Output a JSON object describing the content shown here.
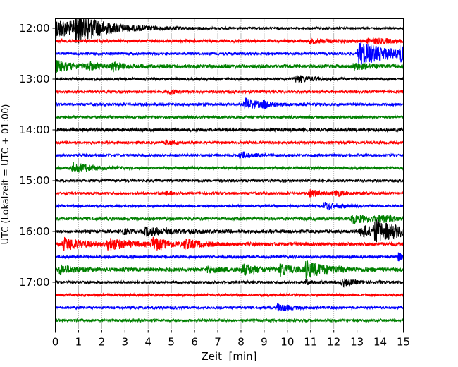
{
  "chart_data": {
    "type": "line",
    "title": "",
    "xlabel": "Zeit  [min]",
    "ylabel": "UTC (Lokalzeit = UTC + 01:00)",
    "xlim": [
      0,
      15
    ],
    "x_ticks": [
      "0",
      "1",
      "2",
      "3",
      "4",
      "5",
      "6",
      "7",
      "8",
      "9",
      "10",
      "11",
      "12",
      "13",
      "14",
      "15"
    ],
    "y_ticks": [
      "12:00",
      "13:00",
      "14:00",
      "15:00",
      "16:00",
      "17:00"
    ],
    "grid": "vertical dotted",
    "trace_interval_min": 15,
    "colors": [
      "#000000",
      "#ff0000",
      "#0000ff",
      "#008000"
    ],
    "traces": [
      {
        "start": "12:00",
        "base": 0.08,
        "events": [
          {
            "t": 0.0,
            "a": 0.75,
            "d": 1.6
          },
          {
            "t": 0.9,
            "a": 0.9,
            "d": 0.5
          },
          {
            "t": 1.4,
            "a": 0.3,
            "d": 1.5
          }
        ]
      },
      {
        "start": "12:15",
        "base": 0.12,
        "events": [
          {
            "t": 11.0,
            "a": 0.12,
            "d": 1.0
          },
          {
            "t": 13.5,
            "a": 0.15,
            "d": 1.5
          }
        ]
      },
      {
        "start": "12:30",
        "base": 0.1,
        "events": [
          {
            "t": 13.1,
            "a": 0.9,
            "d": 1.4
          },
          {
            "t": 14.9,
            "a": 0.55,
            "d": 0.3
          }
        ]
      },
      {
        "start": "12:45",
        "base": 0.14,
        "events": [
          {
            "t": 0.0,
            "a": 0.45,
            "d": 0.6
          },
          {
            "t": 1.4,
            "a": 0.25,
            "d": 0.6
          },
          {
            "t": 2.5,
            "a": 0.25,
            "d": 0.5
          },
          {
            "t": 12.9,
            "a": 0.25,
            "d": 0.5
          }
        ]
      },
      {
        "start": "13:00",
        "base": 0.1,
        "events": [
          {
            "t": 10.4,
            "a": 0.3,
            "d": 0.6
          }
        ]
      },
      {
        "start": "13:15",
        "base": 0.1,
        "events": [
          {
            "t": 4.9,
            "a": 0.15,
            "d": 0.3
          }
        ]
      },
      {
        "start": "13:30",
        "base": 0.1,
        "events": [
          {
            "t": 8.2,
            "a": 0.45,
            "d": 0.6
          },
          {
            "t": 9.0,
            "a": 0.2,
            "d": 0.4
          }
        ]
      },
      {
        "start": "13:45",
        "base": 0.1,
        "events": []
      },
      {
        "start": "14:00",
        "base": 0.12,
        "events": []
      },
      {
        "start": "14:15",
        "base": 0.1,
        "events": [
          {
            "t": 4.8,
            "a": 0.15,
            "d": 0.3
          }
        ]
      },
      {
        "start": "14:30",
        "base": 0.1,
        "events": [
          {
            "t": 8.0,
            "a": 0.25,
            "d": 0.5
          }
        ]
      },
      {
        "start": "14:45",
        "base": 0.1,
        "events": [
          {
            "t": 0.8,
            "a": 0.4,
            "d": 0.7
          }
        ]
      },
      {
        "start": "15:00",
        "base": 0.1,
        "events": []
      },
      {
        "start": "15:15",
        "base": 0.1,
        "events": [
          {
            "t": 4.8,
            "a": 0.15,
            "d": 0.2
          },
          {
            "t": 11.0,
            "a": 0.25,
            "d": 0.5
          },
          {
            "t": 12.1,
            "a": 0.2,
            "d": 0.4
          }
        ]
      },
      {
        "start": "15:30",
        "base": 0.1,
        "events": [
          {
            "t": 11.6,
            "a": 0.3,
            "d": 0.5
          }
        ]
      },
      {
        "start": "15:45",
        "base": 0.12,
        "events": [
          {
            "t": 12.8,
            "a": 0.35,
            "d": 0.8
          },
          {
            "t": 14.0,
            "a": 0.2,
            "d": 0.6
          }
        ]
      },
      {
        "start": "16:00",
        "base": 0.12,
        "events": [
          {
            "t": 2.9,
            "a": 0.2,
            "d": 0.4
          },
          {
            "t": 3.9,
            "a": 0.3,
            "d": 1.2
          },
          {
            "t": 13.2,
            "a": 0.45,
            "d": 0.8
          },
          {
            "t": 13.8,
            "a": 0.7,
            "d": 1.2
          }
        ]
      },
      {
        "start": "16:15",
        "base": 0.14,
        "events": [
          {
            "t": 0.4,
            "a": 0.45,
            "d": 0.8
          },
          {
            "t": 2.3,
            "a": 0.45,
            "d": 0.7
          },
          {
            "t": 4.2,
            "a": 0.5,
            "d": 0.6
          },
          {
            "t": 5.6,
            "a": 0.35,
            "d": 0.6
          }
        ]
      },
      {
        "start": "16:30",
        "base": 0.1,
        "events": [
          {
            "t": 14.8,
            "a": 0.3,
            "d": 0.3
          }
        ]
      },
      {
        "start": "16:45",
        "base": 0.14,
        "events": [
          {
            "t": 0.2,
            "a": 0.35,
            "d": 0.6
          },
          {
            "t": 6.6,
            "a": 0.25,
            "d": 0.5
          },
          {
            "t": 8.1,
            "a": 0.4,
            "d": 0.6
          },
          {
            "t": 9.7,
            "a": 0.4,
            "d": 0.6
          },
          {
            "t": 10.8,
            "a": 0.55,
            "d": 1.0
          }
        ]
      },
      {
        "start": "17:00",
        "base": 0.1,
        "events": [
          {
            "t": 10.8,
            "a": 0.15,
            "d": 0.3
          },
          {
            "t": 12.4,
            "a": 0.25,
            "d": 0.5
          }
        ]
      },
      {
        "start": "17:15",
        "base": 0.1,
        "events": []
      },
      {
        "start": "17:30",
        "base": 0.1,
        "events": [
          {
            "t": 9.6,
            "a": 0.3,
            "d": 0.5
          }
        ]
      },
      {
        "start": "17:45",
        "base": 0.1,
        "events": []
      }
    ]
  }
}
